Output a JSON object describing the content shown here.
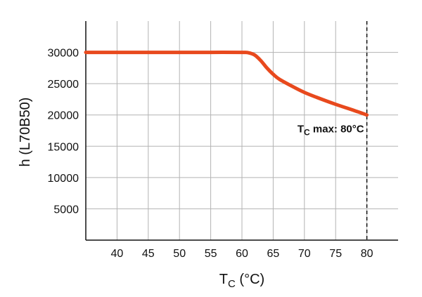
{
  "chart_data": {
    "type": "line",
    "title": "",
    "xlabel": {
      "main": "T",
      "sub": "C",
      "unit": "(°C)"
    },
    "ylabel": "h (L70B50)",
    "xlim": [
      35,
      85
    ],
    "ylim": [
      0,
      35000
    ],
    "x_ticks": [
      40,
      45,
      50,
      55,
      60,
      65,
      70,
      75,
      80
    ],
    "x_tick_labels": [
      "40",
      "45",
      "50",
      "55",
      "60",
      "65",
      "70",
      "75",
      "80"
    ],
    "y_ticks": [
      5000,
      10000,
      15000,
      20000,
      25000,
      30000
    ],
    "y_tick_labels": [
      "5000",
      "10000",
      "15000",
      "20000",
      "25000",
      "30000"
    ],
    "grid": true,
    "series": [
      {
        "color": "#e8491d",
        "x": [
          35,
          40,
          45,
          50,
          55,
          60,
          61,
          62,
          63,
          64,
          65,
          66,
          68,
          70,
          72,
          75,
          78,
          80
        ],
        "y": [
          30000,
          30000,
          30000,
          30000,
          30000,
          30000,
          29950,
          29600,
          28700,
          27500,
          26500,
          25700,
          24600,
          23600,
          22800,
          21700,
          20700,
          20000
        ]
      }
    ],
    "reference_line": {
      "x": 80,
      "style": "dashed"
    },
    "annotation": {
      "main": "T",
      "sub": "C",
      "rest": " max: 80°C",
      "x": 80,
      "y": 20000
    }
  }
}
